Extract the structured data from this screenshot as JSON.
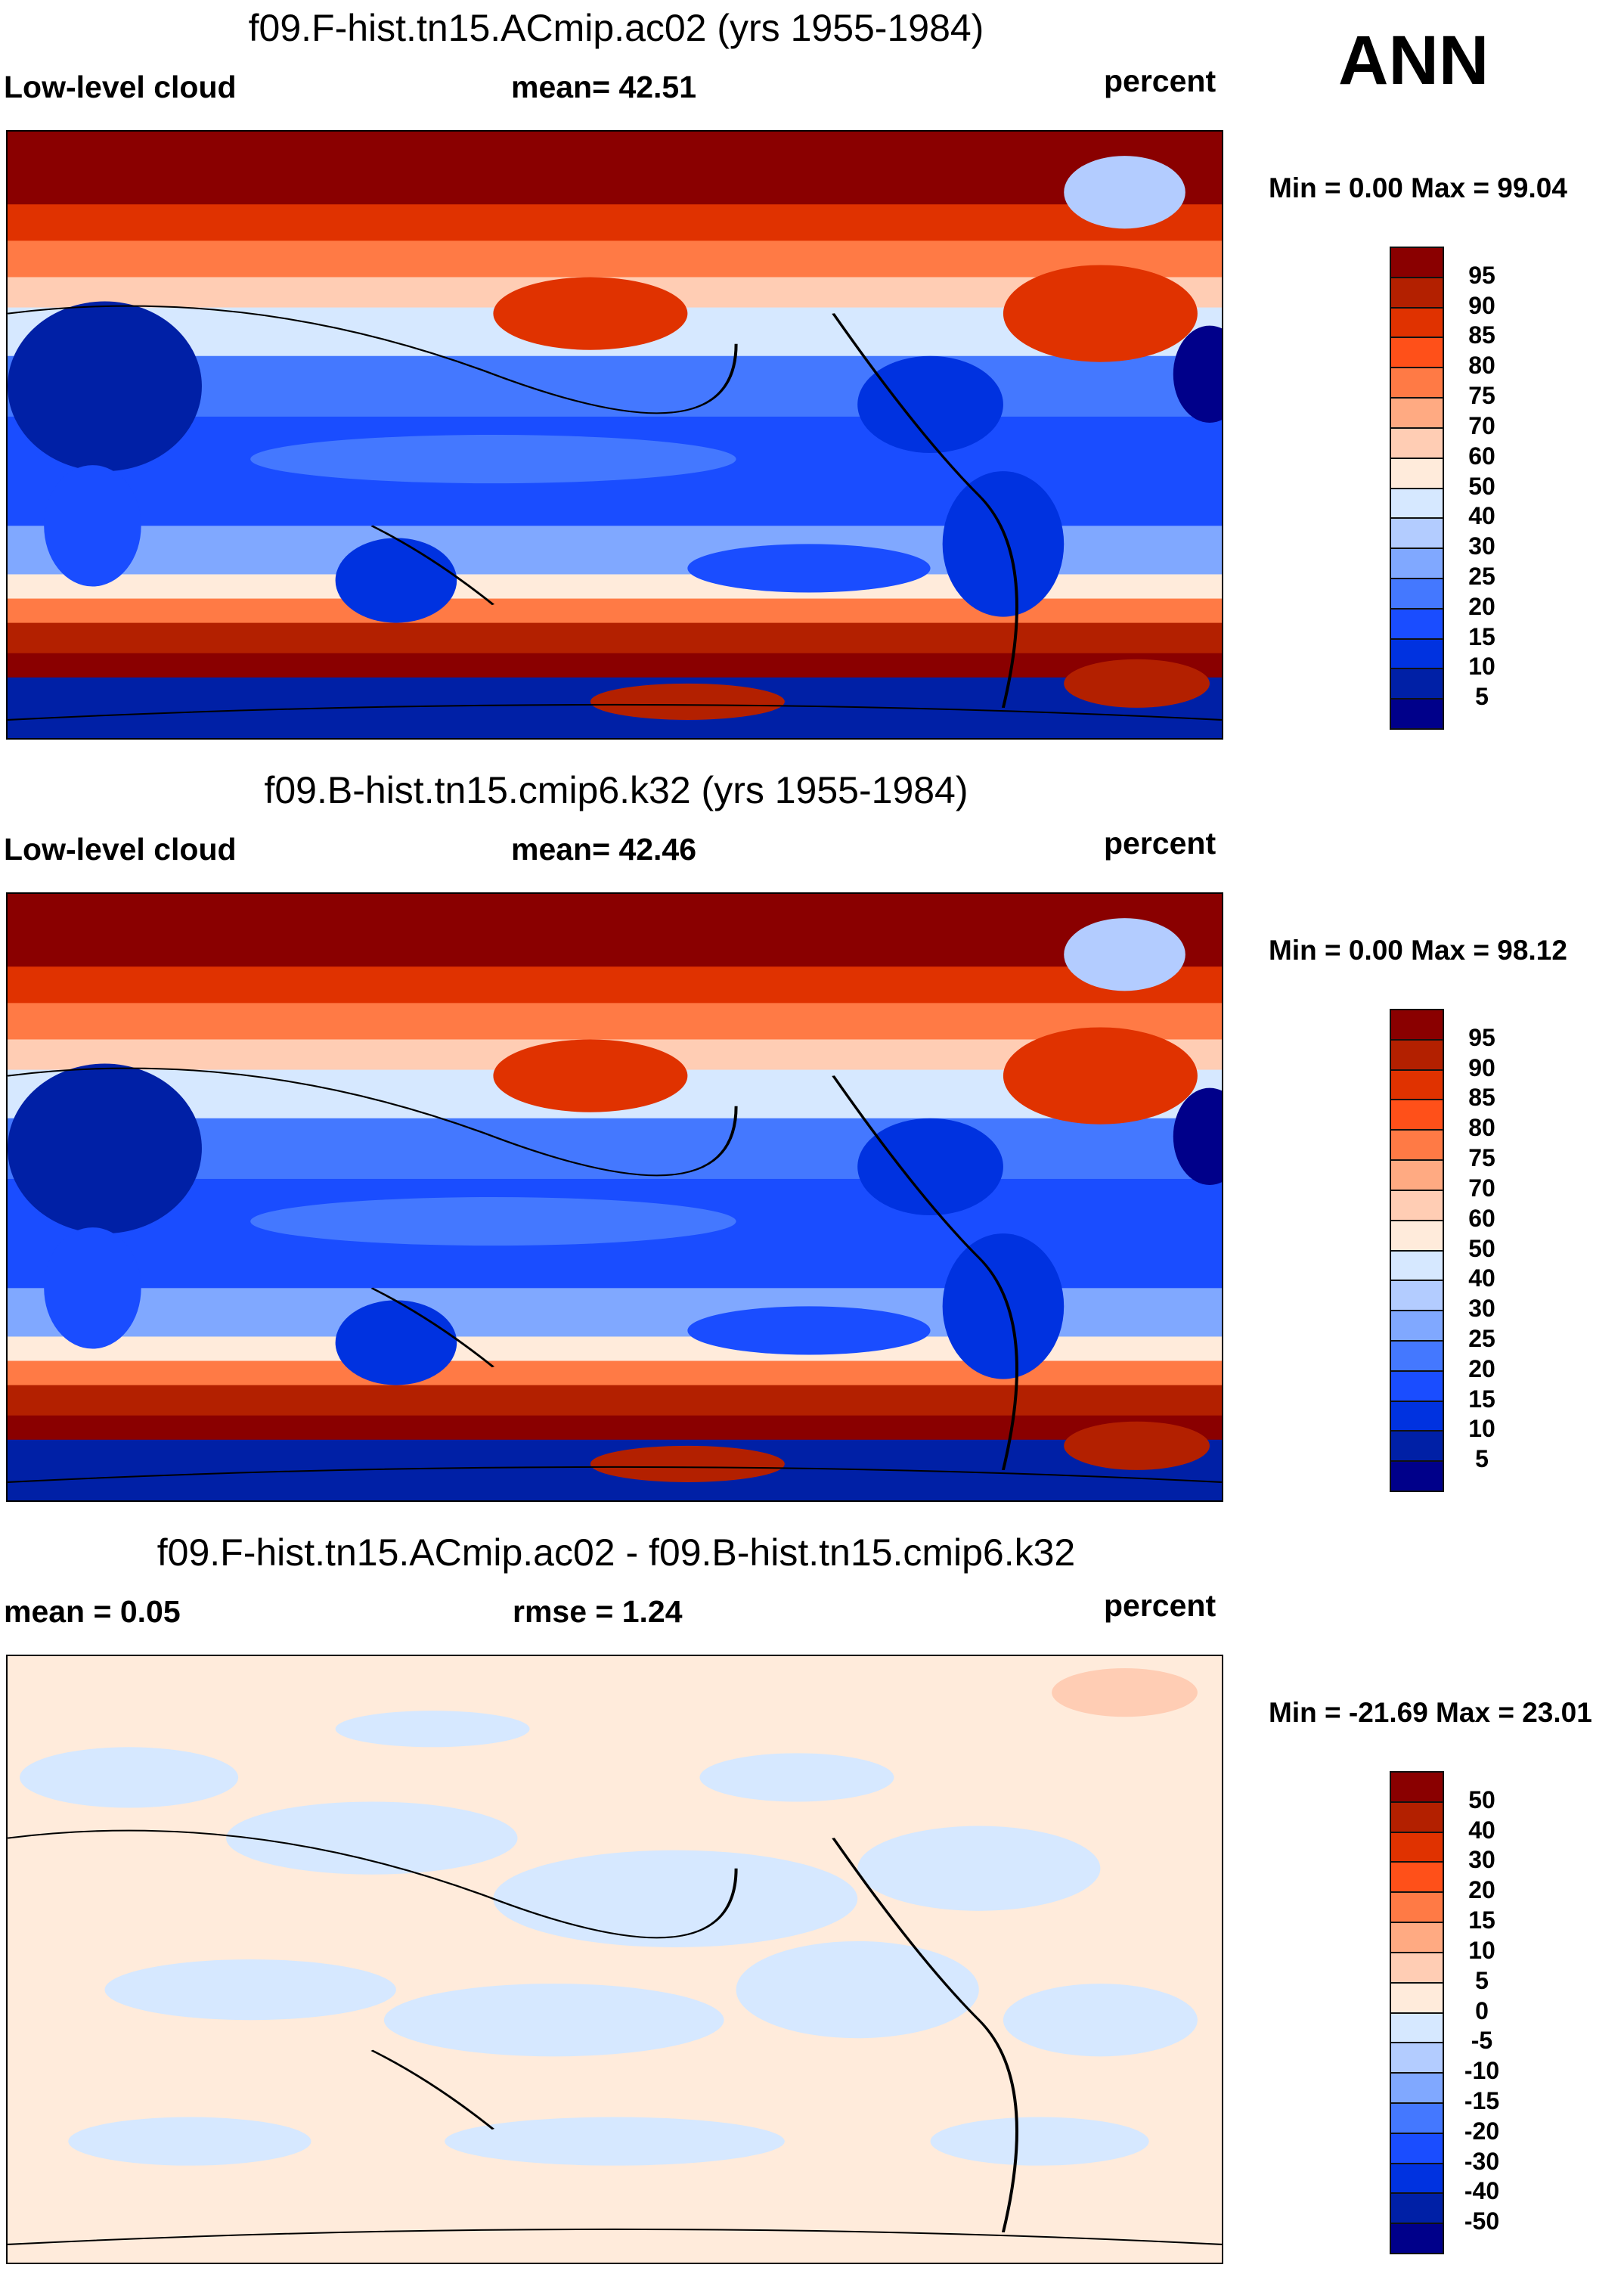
{
  "season": "ANN",
  "chart_data": [
    {
      "type": "heatmap",
      "title": "f09.F-hist.tn15.ACmip.ac02 (yrs 1955-1984)",
      "left_label": "Low-level cloud",
      "center_label": "mean=  42.51",
      "right_label": "percent",
      "minmax": "Min =   0.00 Max =  99.04",
      "mean": 42.51,
      "min": 0.0,
      "max": 99.04,
      "units": "percent",
      "levels": [
        "5",
        "10",
        "15",
        "20",
        "25",
        "30",
        "40",
        "50",
        "60",
        "70",
        "75",
        "80",
        "85",
        "90",
        "95"
      ],
      "colors": [
        "#00008a",
        "#0020a6",
        "#0032e0",
        "#1a4dff",
        "#4478ff",
        "#80a8ff",
        "#b3ccff",
        "#d6e8ff",
        "#ffebdb",
        "#ffcdb4",
        "#ffaa82",
        "#ff7a45",
        "#ff5019",
        "#e03200",
        "#b32000",
        "#8a0000"
      ]
    },
    {
      "type": "heatmap",
      "title": "f09.B-hist.tn15.cmip6.k32 (yrs 1955-1984)",
      "left_label": "Low-level cloud",
      "center_label": "mean=  42.46",
      "right_label": "percent",
      "minmax": "Min =   0.00 Max =  98.12",
      "mean": 42.46,
      "min": 0.0,
      "max": 98.12,
      "units": "percent",
      "levels": [
        "5",
        "10",
        "15",
        "20",
        "25",
        "30",
        "40",
        "50",
        "60",
        "70",
        "75",
        "80",
        "85",
        "90",
        "95"
      ],
      "colors": [
        "#00008a",
        "#0020a6",
        "#0032e0",
        "#1a4dff",
        "#4478ff",
        "#80a8ff",
        "#b3ccff",
        "#d6e8ff",
        "#ffebdb",
        "#ffcdb4",
        "#ffaa82",
        "#ff7a45",
        "#ff5019",
        "#e03200",
        "#b32000",
        "#8a0000"
      ]
    },
    {
      "type": "heatmap",
      "title": "f09.F-hist.tn15.ACmip.ac02 - f09.B-hist.tn15.cmip6.k32",
      "left_label": "mean =   0.05",
      "center_label": "rmse =   1.24",
      "right_label": "percent",
      "minmax": "Min = -21.69 Max =  23.01",
      "mean": 0.05,
      "rmse": 1.24,
      "min": -21.69,
      "max": 23.01,
      "units": "percent",
      "levels": [
        "-50",
        "-40",
        "-30",
        "-20",
        "-15",
        "-10",
        "-5",
        "0",
        "5",
        "10",
        "15",
        "20",
        "30",
        "40",
        "50"
      ],
      "colors": [
        "#00008a",
        "#0020a6",
        "#0032e0",
        "#1a4dff",
        "#4478ff",
        "#80a8ff",
        "#b3ccff",
        "#d6e8ff",
        "#ffebdb",
        "#ffcdb4",
        "#ffaa82",
        "#ff7a45",
        "#ff5019",
        "#e03200",
        "#b32000",
        "#8a0000"
      ]
    }
  ]
}
